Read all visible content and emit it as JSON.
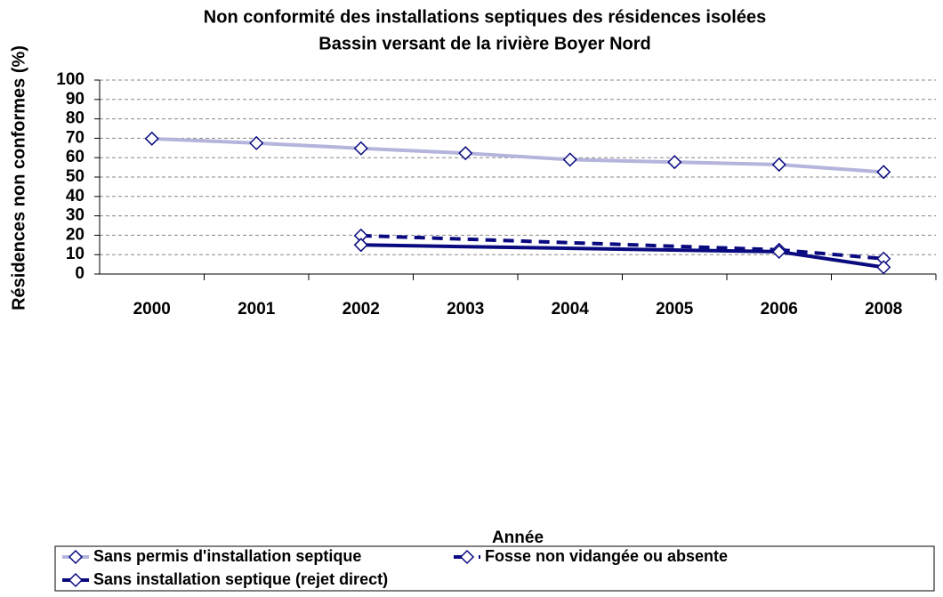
{
  "chart_data": {
    "type": "line",
    "title": "Non conformité des installations septiques des résidences isolées",
    "subtitle": "Bassin versant de la rivière Boyer Nord",
    "x_label": "Année",
    "y_label": "Résidences non conformes (%)",
    "categories": [
      "2000",
      "2001",
      "2002",
      "2003",
      "2004",
      "2005",
      "2006",
      "2008"
    ],
    "series": [
      {
        "name": "Sans permis d'installation septique",
        "color": "#b4b4dc",
        "line_style": "solid",
        "values": [
          69.8,
          67.5,
          64.8,
          62.3,
          59,
          57.7,
          56.4,
          52.6
        ]
      },
      {
        "name": "Fosse non vidangée ou absente",
        "color": "#0a0a80",
        "line_style": "dashed",
        "values": [
          null,
          null,
          19.8,
          null,
          null,
          null,
          12.5,
          7.9
        ]
      },
      {
        "name": "Sans installation septique (rejet direct)",
        "color": "#0a0a80",
        "line_style": "solid",
        "values": [
          null,
          null,
          15,
          null,
          null,
          null,
          11.5,
          3.5
        ]
      }
    ],
    "connect_gaps": true,
    "ylim": [
      0,
      100
    ],
    "yticks": [
      0,
      10,
      20,
      30,
      40,
      50,
      60,
      70,
      80,
      90,
      100
    ],
    "grid": true,
    "legend": "bottom"
  }
}
